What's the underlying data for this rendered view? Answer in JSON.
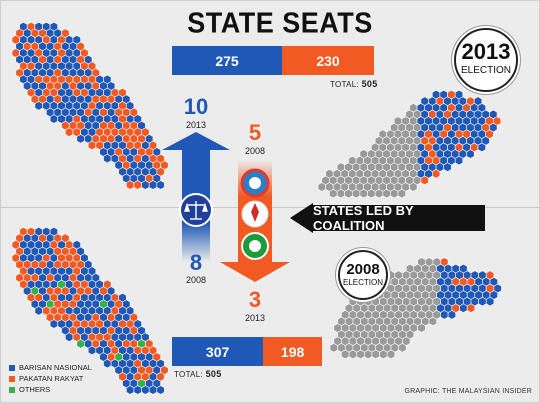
{
  "title": "STATE SEATS",
  "colors": {
    "bn": "#1f58b6",
    "pr": "#f15a22",
    "others": "#36b24a",
    "grey": "#9a9a9a"
  },
  "chart_data": [
    {
      "type": "bar",
      "label": "2013",
      "series": [
        {
          "name": "BARISAN NASIONAL",
          "values": [
            275
          ]
        },
        {
          "name": "PAKATAN RAKYAT",
          "values": [
            230
          ]
        }
      ],
      "total_label": "TOTAL:",
      "total": "505"
    },
    {
      "type": "bar",
      "label": "2008",
      "series": [
        {
          "name": "BARISAN NASIONAL",
          "values": [
            307
          ]
        },
        {
          "name": "PAKATAN RAKYAT",
          "values": [
            198
          ]
        }
      ],
      "total_label": "TOTAL:",
      "total": "505"
    }
  ],
  "badges": {
    "e2013": {
      "year": "2013",
      "label": "ELECTION"
    },
    "e2008": {
      "year": "2008",
      "label": "ELECTION"
    }
  },
  "states_led": {
    "bn_2013": "10",
    "bn_2013_year": "2013",
    "bn_2008": "8",
    "bn_2008_year": "2008",
    "pr_2008": "5",
    "pr_2008_year": "2008",
    "pr_2013": "3",
    "pr_2013_year": "2013"
  },
  "coalition_label": "STATES LED BY COALITION",
  "legend": [
    {
      "label": "BARISAN NASIONAL",
      "color": "#1f58b6"
    },
    {
      "label": "PAKATAN RAKYAT",
      "color": "#f15a22"
    },
    {
      "label": "OTHERS",
      "color": "#36b24a"
    }
  ],
  "credit": "GRAPHIC: THE MALAYSIAN INSIDER"
}
